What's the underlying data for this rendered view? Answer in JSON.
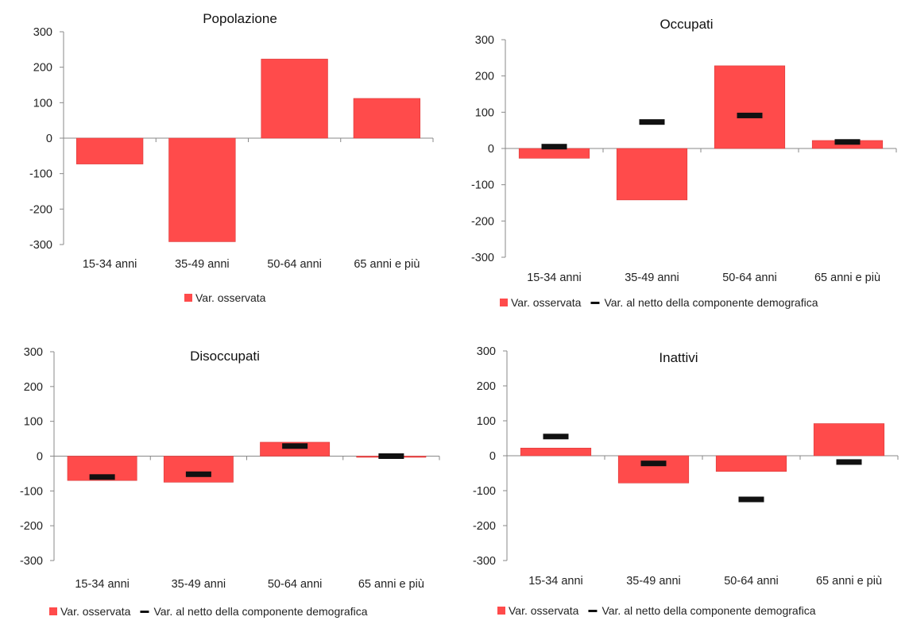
{
  "colors": {
    "observed": "#ff4b4b",
    "observed_stroke": "#d93a3a",
    "net": "#111111",
    "axis": "#888888"
  },
  "chart_data": [
    {
      "type": "bar",
      "title": "Popolazione",
      "categories": [
        "15-34 anni",
        "35-49 anni",
        "50-64 anni",
        "65 anni e più"
      ],
      "ylim": [
        -300,
        300
      ],
      "yticks": [
        "300",
        "200",
        "100",
        "0",
        "-100",
        "-200",
        "-300"
      ],
      "series": [
        {
          "name": "Var. osservata",
          "values": [
            -73,
            -292,
            223,
            112
          ]
        }
      ],
      "legend": [
        "Var. osservata"
      ]
    },
    {
      "type": "bar",
      "title": "Occupati",
      "categories": [
        "15-34 anni",
        "35-49 anni",
        "50-64 anni",
        "65 anni e più"
      ],
      "ylim": [
        -300,
        300
      ],
      "yticks": [
        "300",
        "200",
        "100",
        "0",
        "-100",
        "-200",
        "-300"
      ],
      "series": [
        {
          "name": "Var. osservata",
          "values": [
            -27,
            -142,
            228,
            22
          ]
        },
        {
          "name": "Var. al netto della componente demografica",
          "values": [
            5,
            73,
            91,
            18
          ]
        }
      ],
      "legend": [
        "Var. osservata",
        "Var. al netto della componente demografica"
      ]
    },
    {
      "type": "bar",
      "title": "Disoccupati",
      "categories": [
        "15-34 anni",
        "35-49 anni",
        "50-64 anni",
        "65 anni e più"
      ],
      "ylim": [
        -300,
        300
      ],
      "yticks": [
        "300",
        "200",
        "100",
        "0",
        "-100",
        "-200",
        "-300"
      ],
      "series": [
        {
          "name": "Var. osservata",
          "values": [
            -70,
            -75,
            40,
            -3
          ]
        },
        {
          "name": "Var. al netto della componente demografica",
          "values": [
            -60,
            -52,
            29,
            0
          ]
        }
      ],
      "legend": [
        "Var. osservata",
        "Var. al netto della componente demografica"
      ]
    },
    {
      "type": "bar",
      "title": "Inattivi",
      "categories": [
        "15-34 anni",
        "35-49 anni",
        "50-64 anni",
        "65 anni e più"
      ],
      "ylim": [
        -300,
        300
      ],
      "yticks": [
        "300",
        "200",
        "100",
        "0",
        "-100",
        "-200",
        "-300"
      ],
      "series": [
        {
          "name": "Var. osservata",
          "values": [
            22,
            -78,
            -45,
            92
          ]
        },
        {
          "name": "Var. al netto della componente demografica",
          "values": [
            55,
            -22,
            -125,
            -18
          ]
        }
      ],
      "legend": [
        "Var. osservata",
        "Var. al netto della componente demografica"
      ]
    }
  ]
}
